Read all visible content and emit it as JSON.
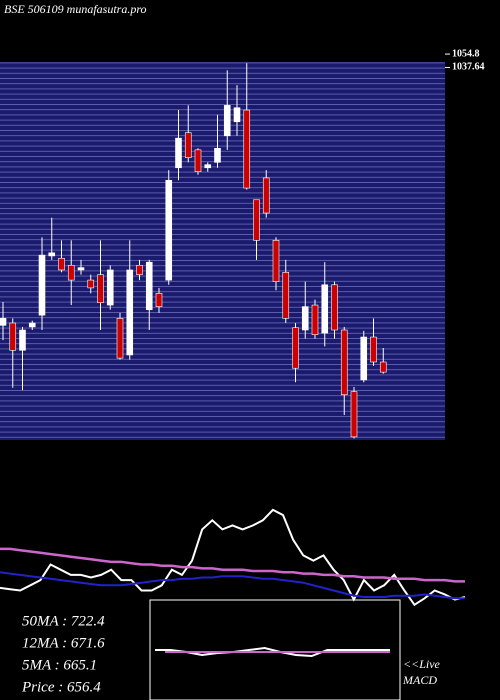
{
  "chart_data": [
    {
      "type": "candlestick",
      "title": "BSE 506109 munafasutra.pro",
      "ylim": [
        560,
        1060
      ],
      "yticks": [
        1054.8,
        1037.64
      ],
      "up_color": "#ffffff",
      "down_color": "#cc0000",
      "open": [
        707,
        710,
        675,
        705,
        720,
        796,
        793,
        784,
        778,
        765,
        772,
        733,
        716,
        669,
        784,
        727,
        748,
        765,
        909,
        954,
        932,
        909,
        916,
        950,
        968,
        983,
        868,
        896,
        816,
        775,
        704,
        701,
        733,
        697,
        759,
        701,
        622,
        637,
        692,
        660
      ],
      "high": [
        737,
        716,
        705,
        713,
        820,
        845,
        816,
        816,
        791,
        772,
        816,
        784,
        723,
        816,
        791,
        791,
        755,
        906,
        983,
        989,
        934,
        916,
        977,
        1034,
        1015,
        1043,
        868,
        906,
        820,
        791,
        710,
        763,
        740,
        788,
        763,
        705,
        628,
        700,
        716,
        678
      ],
      "low": [
        688,
        627,
        624,
        701,
        701,
        791,
        775,
        733,
        772,
        748,
        701,
        727,
        663,
        663,
        765,
        701,
        723,
        759,
        893,
        916,
        900,
        904,
        909,
        932,
        950,
        881,
        791,
        845,
        752,
        710,
        634,
        690,
        690,
        680,
        690,
        592,
        562,
        634,
        655,
        645
      ],
      "close": [
        716,
        675,
        701,
        710,
        797,
        800,
        778,
        765,
        781,
        755,
        736,
        778,
        665,
        778,
        772,
        788,
        731,
        893,
        947,
        922,
        904,
        913,
        934,
        989,
        986,
        883,
        816,
        851,
        763,
        716,
        652,
        731,
        695,
        759,
        701,
        618,
        564,
        692,
        660,
        647
      ]
    },
    {
      "type": "line",
      "ylim": [
        0,
        100
      ],
      "series": [
        {
          "color": "#ffffff",
          "values": [
            17,
            16,
            15,
            19,
            23,
            35,
            31,
            27,
            27,
            25,
            27,
            31,
            23,
            23,
            15,
            15,
            19,
            31,
            27,
            38,
            62,
            69,
            62,
            65,
            62,
            65,
            69,
            77,
            73,
            54,
            42,
            38,
            42,
            31,
            23,
            8,
            23,
            15,
            19,
            27,
            15,
            4,
            9,
            15,
            12,
            8,
            10
          ]
        },
        {
          "color": "#cc66cc",
          "values": [
            47,
            47,
            46,
            45,
            44,
            43,
            42,
            41,
            40,
            39,
            38,
            37,
            37,
            36,
            35,
            35,
            34,
            34,
            33,
            33,
            32,
            32,
            31,
            31,
            31,
            30,
            30,
            30,
            29,
            29,
            28,
            28,
            27,
            27,
            26,
            26,
            25,
            25,
            25,
            24,
            24,
            24,
            23,
            23,
            23,
            22,
            22
          ]
        },
        {
          "color": "#2222cc",
          "values": [
            29,
            28,
            27,
            26,
            25,
            24,
            23,
            22,
            21,
            20,
            19,
            19,
            19,
            20,
            21,
            22,
            23,
            23,
            24,
            24,
            25,
            25,
            26,
            26,
            26,
            25,
            24,
            24,
            23,
            22,
            21,
            19,
            17,
            15,
            13,
            11,
            10,
            10,
            10,
            11,
            11,
            11,
            12,
            11,
            10,
            9,
            9
          ]
        }
      ],
      "stats": [
        "50MA : 722.4",
        "12MA : 671.6",
        "5MA : 665.1",
        "Price   : 656.4"
      ]
    },
    {
      "type": "macd",
      "ylim": [
        0,
        100
      ],
      "label_live": "<<Live",
      "label": "MACD",
      "series": [
        {
          "color": "#ffffff",
          "values": [
            50,
            50,
            48,
            45,
            47,
            48,
            50,
            52,
            48,
            45,
            44,
            50,
            50,
            50,
            50,
            50
          ]
        },
        {
          "color": "#cc66cc",
          "values": [
            48,
            48,
            48,
            48,
            48,
            48,
            48,
            48,
            48,
            48,
            48,
            48,
            48
          ]
        }
      ]
    }
  ]
}
